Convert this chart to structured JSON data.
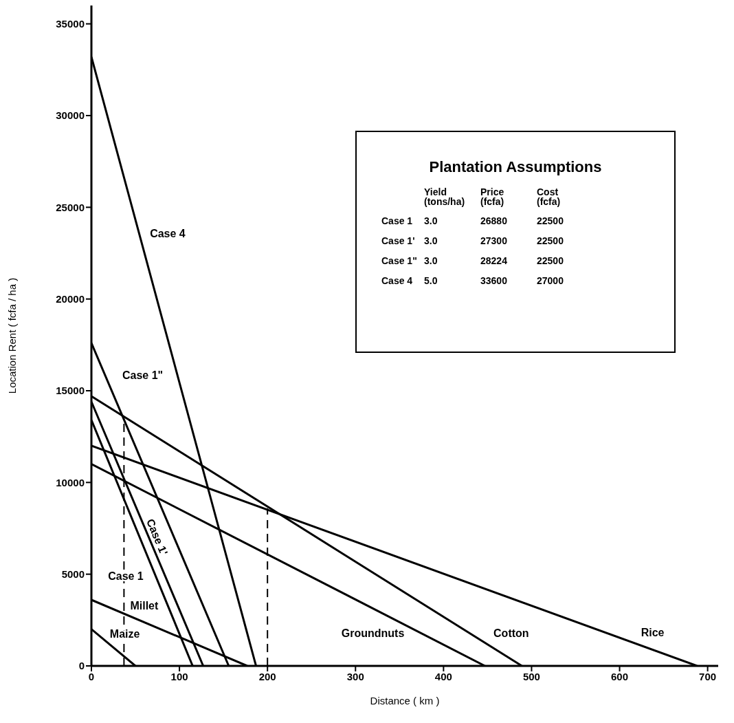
{
  "chart_data": {
    "type": "line",
    "xlabel": "Distance ( km )",
    "ylabel": "Location Rent  ( fcfa / ha )",
    "xlim": [
      0,
      712
    ],
    "xticks": [
      0,
      100,
      200,
      300,
      400,
      500,
      600,
      700
    ],
    "ylim": [
      0,
      36000
    ],
    "yticks": [
      0,
      5000,
      10000,
      15000,
      20000,
      25000,
      30000,
      35000
    ],
    "marker": "none",
    "line_style": "solid",
    "series": [
      {
        "name": "Case 4",
        "color": "#000000",
        "x": [
          0,
          187
        ],
        "values": [
          33200,
          0
        ]
      },
      {
        "name": "Case 1\"",
        "color": "#000000",
        "x": [
          0,
          156
        ],
        "values": [
          17600,
          0
        ]
      },
      {
        "name": "Case 1'",
        "color": "#000000",
        "x": [
          0,
          127
        ],
        "values": [
          14400,
          0
        ]
      },
      {
        "name": "Case 1",
        "color": "#000000",
        "x": [
          0,
          115
        ],
        "values": [
          13400,
          0
        ]
      },
      {
        "name": "Millet",
        "color": "#000000",
        "x": [
          0,
          177
        ],
        "values": [
          3600,
          0
        ]
      },
      {
        "name": "Maize",
        "color": "#000000",
        "x": [
          0,
          50
        ],
        "values": [
          2000,
          0
        ]
      },
      {
        "name": "Groundnuts",
        "color": "#000000",
        "x": [
          0,
          447
        ],
        "values": [
          11000,
          0
        ]
      },
      {
        "name": "Cotton",
        "color": "#000000",
        "x": [
          0,
          489
        ],
        "values": [
          14700,
          0
        ]
      },
      {
        "name": "Rice",
        "color": "#000000",
        "x": [
          0,
          688
        ],
        "values": [
          12000,
          0
        ]
      },
      {
        "color": "#000000",
        "x": [
          37,
          37
        ],
        "values": [
          0,
          13400
        ],
        "line_style": "dashed"
      },
      {
        "color": "#000000",
        "x": [
          200,
          200
        ],
        "values": [
          0,
          8600
        ],
        "line_style": "dashed"
      }
    ],
    "annotations": [
      "Plantation Assumptions",
      "Yield\n(tons/ha)",
      "Price\n(fcfa)",
      "Cost\n(fcfa)",
      "Case 1",
      "3.0",
      "26880",
      "22500",
      "Case 1'",
      "3.0",
      "27300",
      "22500",
      "Case 1\"",
      "3.0",
      "28224",
      "22500",
      "Case 4",
      "5.0",
      "33600",
      "27000"
    ]
  }
}
